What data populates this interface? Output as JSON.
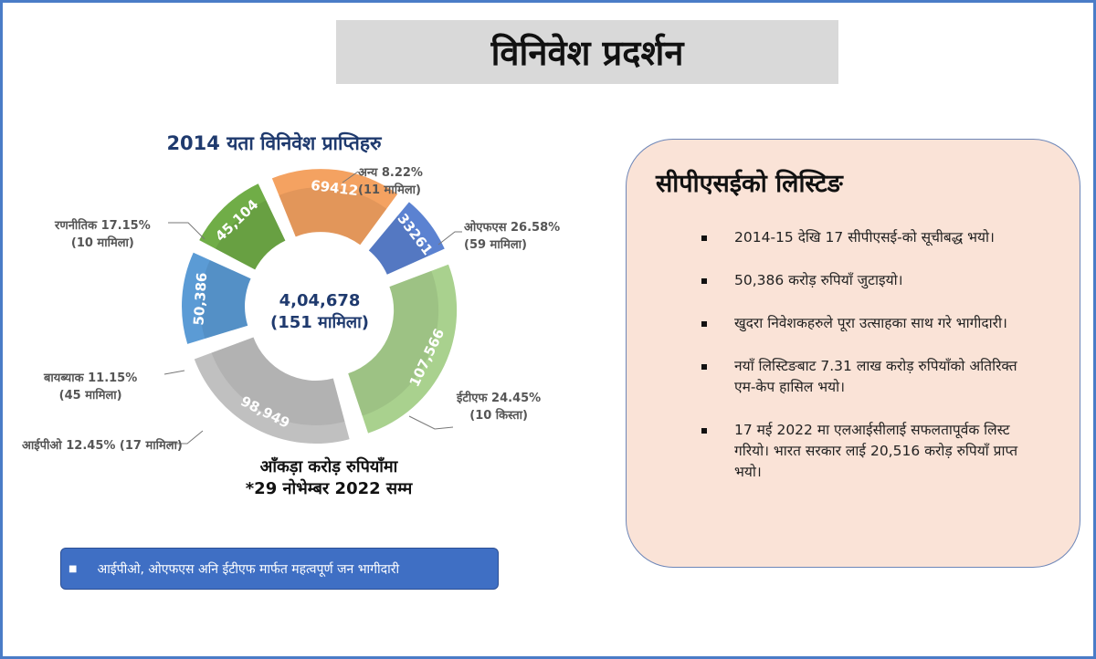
{
  "header": {
    "title": "विनिवेश प्रदर्शन"
  },
  "chart_data": {
    "type": "pie",
    "title": "2014 यता विनिवेश प्राप्तिहरु",
    "center_total": "4,04,678",
    "center_sub": "(151 मामिला)",
    "unit_note": "आँकड़ा करोड़ रुपियाँमा",
    "date_note": "*29 नोभेम्बर 2022 सम्म",
    "slices": [
      {
        "name": "अन्य",
        "value": 33261,
        "value_label": "33261",
        "percent": "8.22%",
        "cases": "(11 मामिला)",
        "color": "#5b82d1"
      },
      {
        "name": "ओएफएस",
        "value": 107566,
        "value_label": "107,566",
        "percent": "26.58%",
        "cases": "(59 मामिला)",
        "color": "#a9d18e"
      },
      {
        "name": "ईटीएफ",
        "value": 98949,
        "value_label": "98,949",
        "percent": "24.45%",
        "cases": "(10 किस्ता)",
        "color": "#c0c0c0"
      },
      {
        "name": "आईपीओ",
        "value": 50386,
        "value_label": "50,386",
        "percent": "12.45%",
        "cases": "(17 मामिला)",
        "color": "#5b9bd5"
      },
      {
        "name": "बायब्याक",
        "value": 45104,
        "value_label": "45,104",
        "percent": "11.15%",
        "cases": "(45 मामिला)",
        "color": "#70ad47"
      },
      {
        "name": "रणनीतिक",
        "value": 69412,
        "value_label": "69412",
        "percent": "17.15%",
        "cases": "(10 मामिला)",
        "color": "#f4a261"
      }
    ],
    "labels": {
      "other": "अन्य 8.22%",
      "other_cases": "(11 मामिला)",
      "ofs": "ओएफएस 26.58%",
      "ofs_cases": "(59 मामिला)",
      "etf": "ईटीएफ 24.45%",
      "etf_cases": "(10 किस्ता)",
      "ipo": "आईपीओ 12.45% (17 मामिला)",
      "buyback": "बायब्याक 11.15%",
      "buyback_cases": "(45 मामिला)",
      "strategic": "रणनीतिक 17.15%",
      "strategic_cases": "(10 मामिला)"
    }
  },
  "banner": {
    "text": "आईपीओ, ओएफएस अनि ईटीएफ मार्फत महत्वपूर्ण जन भागीदारी"
  },
  "panel": {
    "title": "सीपीएसईको लिस्टिङ",
    "items": [
      "2014-15 देखि 17 सीपीएसई-को सूचीबद्ध भयो।",
      "50,386 करोड़ रुपियाँ जुटाइयो।",
      "खुदरा निवेशकहरुले पूरा उत्साहका साथ गरे भागीदारी।",
      "नयाँ लिस्टिङबाट 7.31 लाख करोड़ रुपियाँको अतिरिक्त एम-केप हासिल भयो।",
      "17 मई 2022 मा एलआईसीलाई सफलतापूर्वक लिस्ट गरियो। भारत सरकार लाई 20,516 करोड़ रुपियाँ प्राप्त भयो।"
    ]
  }
}
